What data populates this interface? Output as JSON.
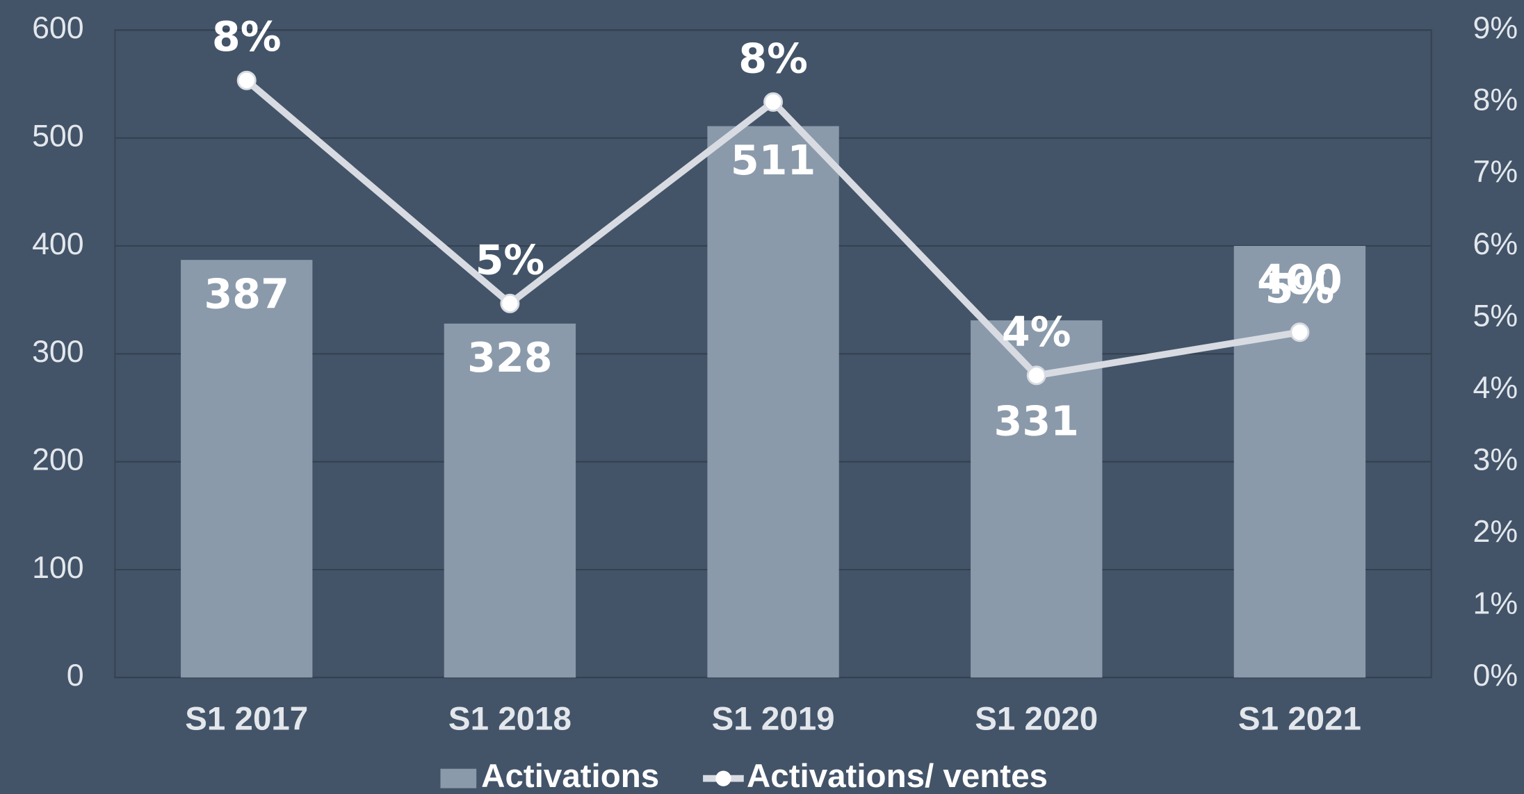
{
  "chart_data": {
    "type": "bar",
    "categories": [
      "S1 2017",
      "S1 2018",
      "S1 2019",
      "S1 2020",
      "S1 2021"
    ],
    "series": [
      {
        "name": "Activations",
        "type": "bar",
        "color": "#8a9aab",
        "values": [
          387,
          328,
          511,
          331,
          400
        ]
      },
      {
        "name": "Activations/ ventes",
        "type": "line",
        "axis": "y2",
        "color": "#d8dce2",
        "values": [
          8.3,
          5.2,
          8.0,
          4.2,
          4.8
        ],
        "value_labels": [
          "8%",
          "5%",
          "8%",
          "4%",
          "5%"
        ]
      }
    ],
    "ylim": [
      0,
      600
    ],
    "yticks": [
      0,
      100,
      200,
      300,
      400,
      500,
      600
    ],
    "y2lim": [
      0,
      9
    ],
    "y2ticks": [
      {
        "value": 0,
        "label": "0%"
      },
      {
        "value": 1,
        "label": "1%"
      },
      {
        "value": 2,
        "label": "2%"
      },
      {
        "value": 3,
        "label": "3%"
      },
      {
        "value": 4,
        "label": "4%"
      },
      {
        "value": 5,
        "label": "5%"
      },
      {
        "value": 6,
        "label": "6%"
      },
      {
        "value": 7,
        "label": "7%"
      },
      {
        "value": 8,
        "label": "8%"
      },
      {
        "value": 9,
        "label": "9%"
      }
    ],
    "grid": true,
    "legend": "bottom"
  }
}
